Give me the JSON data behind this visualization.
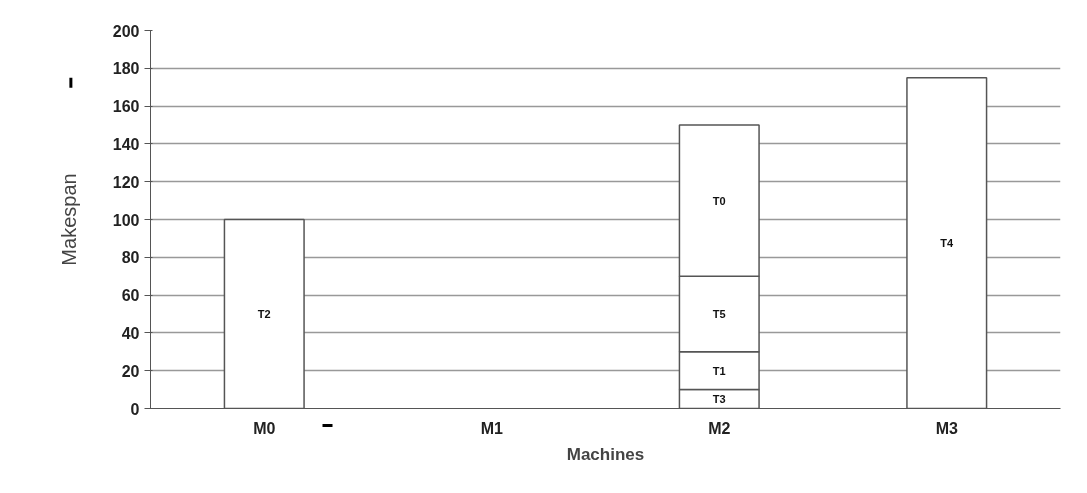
{
  "chart_data": {
    "type": "bar",
    "stacked": true,
    "xlabel": "Machines",
    "ylabel": "Makespan",
    "categories": [
      "M0",
      "M1",
      "M2",
      "M3"
    ],
    "series": [
      {
        "name": "T2",
        "color": "#ffffff",
        "values": [
          100,
          null,
          null,
          null
        ]
      },
      {
        "name": "T3",
        "color": "#ffffff",
        "values": [
          null,
          null,
          10,
          null
        ]
      },
      {
        "name": "T1",
        "color": "#ffffff",
        "values": [
          null,
          null,
          20,
          null
        ]
      },
      {
        "name": "T5",
        "color": "#ffffff",
        "values": [
          null,
          null,
          40,
          null
        ]
      },
      {
        "name": "T0",
        "color": "#ffffff",
        "values": [
          null,
          null,
          80,
          null
        ]
      },
      {
        "name": "T4",
        "color": "#ffffff",
        "values": [
          null,
          null,
          null,
          175
        ]
      }
    ],
    "ylim": [
      0,
      200
    ],
    "yticks": [
      0,
      20,
      40,
      60,
      80,
      100,
      120,
      140,
      160,
      180,
      200
    ],
    "grid": "y"
  }
}
